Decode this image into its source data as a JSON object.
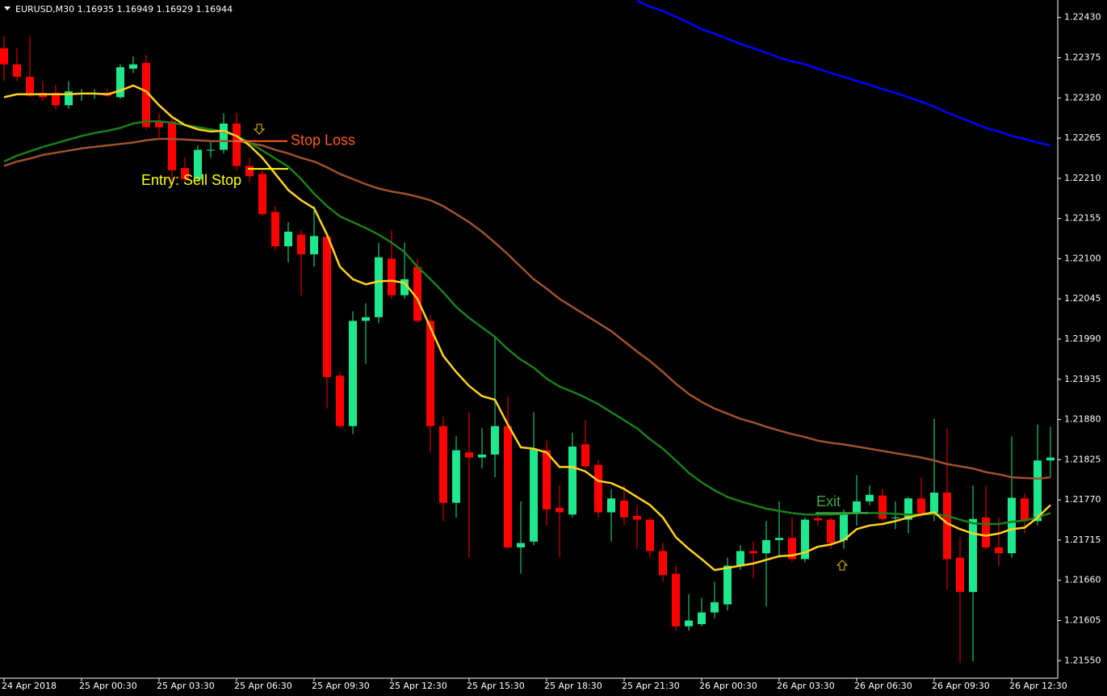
{
  "chart_data": {
    "type": "candlestick",
    "title": "EURUSD,M30 1.16935 1.16949 1.16929 1.16944",
    "categories": [
      "24 Apr 2018",
      null,
      null,
      null,
      null,
      null,
      "25 Apr 00:30",
      null,
      null,
      null,
      null,
      null,
      "25 Apr 03:30",
      null,
      null,
      null,
      null,
      null,
      "25 Apr 06:30",
      null,
      null,
      null,
      null,
      null,
      "25 Apr 09:30",
      null,
      null,
      null,
      null,
      null,
      "25 Apr 12:30",
      null,
      null,
      null,
      null,
      null,
      "25 Apr 15:30",
      null,
      null,
      null,
      null,
      null,
      "25 Apr 18:30",
      null,
      null,
      null,
      null,
      null,
      "25 Apr 21:30",
      null,
      null,
      null,
      null,
      null,
      "26 Apr 00:30",
      null,
      null,
      null,
      null,
      null,
      "26 Apr 03:30",
      null,
      null,
      null,
      null,
      null,
      "26 Apr 06:30",
      null,
      null,
      null,
      null,
      null,
      "26 Apr 09:30",
      null,
      null,
      null,
      null,
      null,
      "26 Apr 12:30",
      null,
      null,
      null
    ],
    "open": [
      1.22388,
      1.22366,
      1.22349,
      1.22327,
      1.22327,
      1.2231,
      1.22325,
      1.22325,
      1.22327,
      1.22321,
      1.2236,
      1.22368,
      1.22288,
      1.22288,
      1.22224,
      1.22209,
      1.22249,
      1.22249,
      1.22285,
      1.22227,
      1.22216,
      1.22164,
      1.22117,
      1.22133,
      1.22106,
      1.2213,
      1.2194,
      1.21871,
      1.22015,
      1.2202,
      1.221,
      1.2205,
      1.22089,
      1.22015,
      1.21871,
      1.21766,
      1.21835,
      1.21828,
      1.21832,
      1.21871,
      1.21705,
      1.21713,
      1.21838,
      1.21759,
      1.2175,
      1.21846,
      1.21818,
      1.21753,
      1.21769,
      1.21748,
      1.21743,
      1.217,
      1.21669,
      1.21597,
      1.216,
      1.21616,
      1.21627,
      1.2168,
      1.217,
      1.21697,
      1.21715,
      1.21718,
      1.21689,
      1.21745,
      1.21743,
      1.21715,
      1.21751,
      1.21768,
      1.21776,
      1.21746,
      1.21743,
      1.21772,
      1.21752,
      1.2178,
      1.21691,
      1.21644,
      1.21746,
      1.21705,
      1.21697,
      1.21772,
      1.21741,
      1.21824
    ],
    "high": [
      1.22404,
      1.22388,
      1.22404,
      1.22343,
      1.22338,
      1.22343,
      1.22332,
      1.22332,
      1.22332,
      1.22366,
      1.22377,
      1.22379,
      1.22299,
      1.22294,
      1.22238,
      1.22255,
      1.22261,
      1.22299,
      1.22299,
      1.22238,
      1.22221,
      1.22172,
      1.2215,
      1.22139,
      1.22172,
      1.22133,
      1.21945,
      1.22028,
      1.22039,
      1.22122,
      1.22139,
      1.22122,
      1.221,
      1.22023,
      1.21884,
      1.21857,
      1.2189,
      1.21868,
      1.21995,
      1.21912,
      1.21768,
      1.2189,
      1.21851,
      1.2179,
      1.21862,
      1.21879,
      1.21824,
      1.21785,
      1.2179,
      1.21763,
      1.21746,
      1.21711,
      1.2168,
      1.21641,
      1.21636,
      1.21658,
      1.21691,
      1.21708,
      1.21713,
      1.21741,
      1.21768,
      1.21746,
      1.21746,
      1.21751,
      1.21746,
      1.21757,
      1.21804,
      1.2179,
      1.21785,
      1.21768,
      1.21774,
      1.21801,
      1.21881,
      1.21868,
      1.21719,
      1.2179,
      1.2179,
      1.21746,
      1.21857,
      1.21779,
      1.21873,
      1.2187
    ],
    "low": [
      1.22343,
      1.22343,
      1.22321,
      1.22316,
      1.22305,
      1.22305,
      1.22316,
      1.22319,
      1.22321,
      1.22319,
      1.22354,
      1.22277,
      1.22266,
      1.22205,
      1.22205,
      1.22205,
      1.22238,
      1.22244,
      1.22221,
      1.22205,
      1.22158,
      1.22111,
      1.22095,
      1.2205,
      1.22089,
      1.21895,
      1.21868,
      1.2186,
      1.21956,
      1.22012,
      1.22045,
      1.22045,
      1.22012,
      1.21835,
      1.21741,
      1.21746,
      1.21691,
      1.21813,
      1.21801,
      1.21703,
      1.21669,
      1.21708,
      1.21735,
      1.21691,
      1.21746,
      1.21813,
      1.21746,
      1.21713,
      1.21735,
      1.21703,
      1.21691,
      1.21658,
      1.21591,
      1.21591,
      1.21597,
      1.21608,
      1.21619,
      1.21674,
      1.21663,
      1.21624,
      1.21691,
      1.21685,
      1.21685,
      1.21735,
      1.21703,
      1.21703,
      1.21735,
      1.21763,
      1.21741,
      1.2173,
      1.21724,
      1.21746,
      1.21741,
      1.21647,
      1.21547,
      1.21549,
      1.21703,
      1.2168,
      1.21691,
      1.21724,
      1.21735,
      1.21801
    ],
    "close": [
      1.22366,
      1.22349,
      1.22323,
      1.22321,
      1.2231,
      1.22329,
      1.22327,
      1.22327,
      1.22323,
      1.22362,
      1.22366,
      1.2228,
      1.2228,
      1.22221,
      1.22209,
      1.22249,
      1.22249,
      1.22285,
      1.22227,
      1.22213,
      1.22161,
      1.22117,
      1.22137,
      1.22106,
      1.22131,
      1.21938,
      1.21871,
      1.22015,
      1.2202,
      1.22102,
      1.2205,
      1.22072,
      1.22015,
      1.21871,
      1.21766,
      1.21838,
      1.21828,
      1.21832,
      1.21871,
      1.21705,
      1.21711,
      1.21839,
      1.21757,
      1.21753,
      1.21843,
      1.21816,
      1.21753,
      1.21772,
      1.21746,
      1.21743,
      1.217,
      1.21667,
      1.21597,
      1.21605,
      1.21616,
      1.2163,
      1.2168,
      1.217,
      1.21697,
      1.21715,
      1.21718,
      1.21689,
      1.21743,
      1.21742,
      1.21711,
      1.21751,
      1.21768,
      1.21777,
      1.21744,
      1.21746,
      1.21772,
      1.21752,
      1.2178,
      1.21689,
      1.21644,
      1.21744,
      1.21705,
      1.21697,
      1.21773,
      1.21741,
      1.21824,
      1.21828
    ],
    "up_color": "#1ee88e",
    "down_color": "#ff0000",
    "lines": [
      {
        "color": "#0000ff",
        "values": [
          null,
          null,
          null,
          null,
          null,
          null,
          null,
          null,
          null,
          null,
          null,
          null,
          null,
          null,
          null,
          null,
          null,
          null,
          null,
          null,
          null,
          null,
          null,
          null,
          null,
          null,
          null,
          null,
          null,
          null,
          null,
          null,
          null,
          null,
          null,
          null,
          null,
          null,
          null,
          null,
          null,
          null,
          null,
          null,
          null,
          null,
          null,
          null,
          null,
          1.22453,
          1.22445,
          1.22439,
          1.22431,
          1.22423,
          1.22414,
          1.22408,
          1.22401,
          1.22394,
          1.22388,
          1.22382,
          1.22375,
          1.2237,
          1.22366,
          1.2236,
          1.22354,
          1.22349,
          1.22343,
          1.22338,
          1.22332,
          1.22327,
          1.22321,
          1.22315,
          1.22308,
          1.223,
          1.22293,
          1.22286,
          1.22279,
          1.22274,
          1.22268,
          1.22264,
          1.22259,
          1.22255
        ]
      },
      {
        "color": "#a0522d",
        "values": [
          1.22227,
          1.22233,
          1.22237,
          1.22242,
          1.22245,
          1.22248,
          1.22251,
          1.22253,
          1.22255,
          1.22257,
          1.22259,
          1.22262,
          1.22264,
          1.22264,
          1.22263,
          1.22262,
          1.22261,
          1.22261,
          1.22261,
          1.22258,
          1.22255,
          1.22249,
          1.22244,
          1.22238,
          1.22233,
          1.22225,
          1.22216,
          1.22209,
          1.22202,
          1.22196,
          1.22192,
          1.22189,
          1.22185,
          1.2218,
          1.22172,
          1.22161,
          1.2215,
          1.22137,
          1.22122,
          1.22106,
          1.22089,
          1.22072,
          1.22059,
          1.22045,
          1.22034,
          1.22023,
          1.22012,
          1.22001,
          1.21987,
          1.21973,
          1.2196,
          1.21945,
          1.21929,
          1.21915,
          1.21904,
          1.21895,
          1.21888,
          1.21881,
          1.21876,
          1.2187,
          1.21865,
          1.2186,
          1.21856,
          1.21851,
          1.21848,
          1.21846,
          1.21843,
          1.2184,
          1.21837,
          1.21834,
          1.21831,
          1.21828,
          1.21824,
          1.21819,
          1.21816,
          1.21813,
          1.21808,
          1.21805,
          1.21801,
          1.218,
          1.21799,
          1.21801
        ]
      },
      {
        "color": "#1a7f1a",
        "values": [
          1.22233,
          1.22241,
          1.22247,
          1.22253,
          1.22258,
          1.22263,
          1.22268,
          1.22272,
          1.22275,
          1.22279,
          1.22285,
          1.22288,
          1.22288,
          1.22286,
          1.22283,
          1.2228,
          1.22277,
          1.22274,
          1.22268,
          1.22259,
          1.22248,
          1.22237,
          1.22226,
          1.22209,
          1.22189,
          1.22172,
          1.22158,
          1.2215,
          1.22142,
          1.22133,
          1.22122,
          1.22109,
          1.22089,
          1.22072,
          1.22054,
          1.22034,
          1.22019,
          1.22006,
          1.21993,
          1.21976,
          1.21962,
          1.21951,
          1.21936,
          1.21925,
          1.21918,
          1.2191,
          1.21901,
          1.2189,
          1.21879,
          1.21868,
          1.21853,
          1.2184,
          1.21824,
          1.21807,
          1.21794,
          1.21783,
          1.21774,
          1.21768,
          1.21763,
          1.21758,
          1.21755,
          1.21752,
          1.2175,
          1.2175,
          1.2175,
          1.21751,
          1.21752,
          1.21752,
          1.21752,
          1.21751,
          1.2175,
          1.2175,
          1.21751,
          1.21748,
          1.21743,
          1.21738,
          1.21737,
          1.21737,
          1.2174,
          1.21742,
          1.21746,
          1.21752
        ]
      },
      {
        "color": "#ffd21f",
        "values": [
          1.22321,
          1.22325,
          1.22325,
          1.22325,
          1.22325,
          1.22325,
          1.22326,
          1.22326,
          1.22325,
          1.2233,
          1.22337,
          1.22329,
          1.2231,
          1.22294,
          1.22283,
          1.22277,
          1.22274,
          1.22275,
          1.22268,
          1.22255,
          1.22238,
          1.22216,
          1.22194,
          1.2218,
          1.22169,
          1.22133,
          1.22089,
          1.22072,
          1.22065,
          1.22069,
          1.2207,
          1.22067,
          1.22045,
          1.22006,
          1.21967,
          1.21945,
          1.21926,
          1.21912,
          1.21907,
          1.21873,
          1.21842,
          1.2184,
          1.21835,
          1.21815,
          1.21815,
          1.21809,
          1.21796,
          1.21793,
          1.21785,
          1.21774,
          1.21763,
          1.21746,
          1.21719,
          1.21703,
          1.21689,
          1.21674,
          1.21677,
          1.2168,
          1.21683,
          1.21688,
          1.21693,
          1.21694,
          1.21698,
          1.21706,
          1.21709,
          1.21715,
          1.2173,
          1.21735,
          1.21737,
          1.21741,
          1.21746,
          1.2175,
          1.21753,
          1.21738,
          1.2173,
          1.21724,
          1.21721,
          1.21724,
          1.2173,
          1.21732,
          1.21746,
          1.21763
        ]
      }
    ],
    "annotations": [
      {
        "text": "Stop Loss",
        "value": 1.22261,
        "color": "#ff5a1f"
      },
      {
        "text": "Entry: Sell Stop",
        "value": 1.22223,
        "color": "#ffff00"
      },
      {
        "text": "Exit",
        "value": 1.21752,
        "color": "#3cb043"
      }
    ],
    "ylim": [
      1.21526,
      1.22454
    ],
    "yticks": [
      {
        "value": 1.2243,
        "label": "1.22430"
      },
      1.22375,
      {
        "value": 1.2232,
        "label": "1.22320"
      },
      1.22265,
      {
        "value": 1.2221,
        "label": "1.22210"
      },
      1.22155,
      {
        "value": 1.221,
        "label": "1.22100"
      },
      1.22045,
      {
        "value": 1.2199,
        "label": "1.21990"
      },
      1.21935,
      {
        "value": 1.2188,
        "label": "1.21880"
      },
      1.21825,
      {
        "value": 1.2177,
        "label": "1.21770"
      },
      1.21715,
      {
        "value": 1.2166,
        "label": "1.21660"
      },
      1.21605,
      {
        "value": 1.2155,
        "label": "1.21550"
      }
    ]
  }
}
